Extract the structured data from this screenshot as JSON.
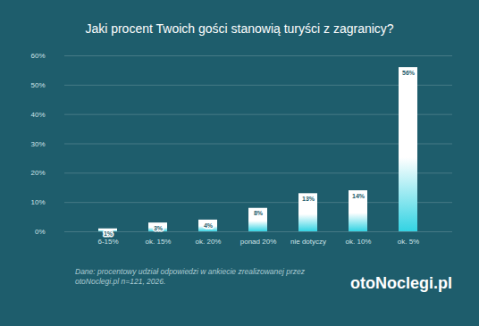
{
  "chart_data": {
    "type": "bar",
    "title": "Jaki procent Twoich gości stanowią turyści z zagranicy?",
    "categories": [
      "6-15%",
      "ok. 15%",
      "ok. 20%",
      "ponad 20%",
      "nie dotyczy",
      "ok. 10%",
      "ok. 5%"
    ],
    "values": [
      1,
      3,
      4,
      8,
      13,
      14,
      56
    ],
    "value_labels": [
      "1%",
      "3%",
      "4%",
      "8%",
      "13%",
      "14%",
      "56%"
    ],
    "color": "#33d3e3",
    "ylim": [
      0,
      60
    ],
    "yticks": [
      {
        "value": 0,
        "label": "0%"
      },
      {
        "value": 10,
        "label": "10%"
      },
      {
        "value": 20,
        "label": "20%"
      },
      {
        "value": 30,
        "label": "30%"
      },
      {
        "value": 40,
        "label": "40%"
      },
      {
        "value": 50,
        "label": "50%"
      },
      {
        "value": 60,
        "label": "60%"
      }
    ],
    "grid": true,
    "data_labels": true,
    "caption": "Dane: procentowy udział odpowiedzi w ankiecie zrealizowanej przez otoNoclegi.pl n=121, 2026.",
    "logo": "otoNoclegi.pl"
  }
}
